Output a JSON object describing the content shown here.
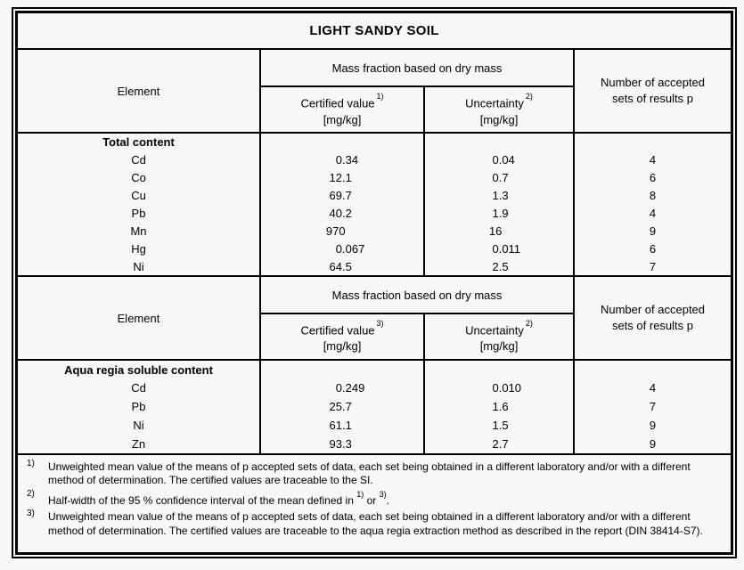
{
  "colors": {
    "background": "#f7f7f7",
    "text": "#000000",
    "border": "#000000"
  },
  "page": {
    "title": "LIGHT SANDY SOIL"
  },
  "table": {
    "sections": [
      {
        "header": {
          "element": "Element",
          "mass_fraction": "Mass fraction based on dry mass",
          "certified_label": "Certified value",
          "certified_sup": "1)",
          "certified_unit": "[mg/kg]",
          "uncertainty_label": "Uncertainty",
          "uncertainty_sup": "2)",
          "uncertainty_unit": "[mg/kg]",
          "accepted_line1": "Number of accepted",
          "accepted_line2": "sets of results p"
        },
        "group_label": "Total content",
        "rows": [
          {
            "element": "Cd",
            "certified": "0.34",
            "uncertainty": "0.04",
            "p": "4"
          },
          {
            "element": "Co",
            "certified": "12.1",
            "uncertainty": "0.7",
            "p": "6"
          },
          {
            "element": "Cu",
            "certified": "69.7",
            "uncertainty": "1.3",
            "p": "8"
          },
          {
            "element": "Pb",
            "certified": "40.2",
            "uncertainty": "1.9",
            "p": "4"
          },
          {
            "element": "Mn",
            "certified": "970",
            "uncertainty": "16",
            "p": "9"
          },
          {
            "element": "Hg",
            "certified": "0.067",
            "uncertainty": "0.011",
            "p": "6"
          },
          {
            "element": "Ni",
            "certified": "64.5",
            "uncertainty": "2.5",
            "p": "7"
          }
        ]
      },
      {
        "header": {
          "element": "Element",
          "mass_fraction": "Mass fraction based on dry mass",
          "certified_label": "Certified value",
          "certified_sup": "3)",
          "certified_unit": "[mg/kg]",
          "uncertainty_label": "Uncertainty",
          "uncertainty_sup": "2)",
          "uncertainty_unit": "[mg/kg]",
          "accepted_line1": "Number of accepted",
          "accepted_line2": "sets of results p"
        },
        "group_label": "Aqua regia soluble content",
        "rows": [
          {
            "element": "Cd",
            "certified": "0.249",
            "uncertainty": "0.010",
            "p": "4"
          },
          {
            "element": "Pb",
            "certified": "25.7",
            "uncertainty": "1.6",
            "p": "7"
          },
          {
            "element": "Ni",
            "certified": "61.1",
            "uncertainty": "1.5",
            "p": "9"
          },
          {
            "element": "Zn",
            "certified": "93.3",
            "uncertainty": "2.7",
            "p": "9"
          }
        ]
      }
    ]
  },
  "footnotes": [
    {
      "marker": "1)",
      "parts": [
        "Unweighted mean value of the means of p accepted sets of data, each set being obtained in a different laboratory and/or with a different method of determination. The certified values are traceable to the SI."
      ]
    },
    {
      "marker": "2)",
      "parts": [
        "Half-width of the 95 % confidence interval of the mean defined in ",
        "1)",
        " or ",
        "3)",
        "."
      ]
    },
    {
      "marker": "3)",
      "parts": [
        "Unweighted mean value of the means of p accepted sets of data, each set being obtained in a different laboratory and/or with a different method of determination. The certified values are traceable to the aqua regia extraction method as described in the report (DIN 38414-S7)."
      ]
    }
  ]
}
